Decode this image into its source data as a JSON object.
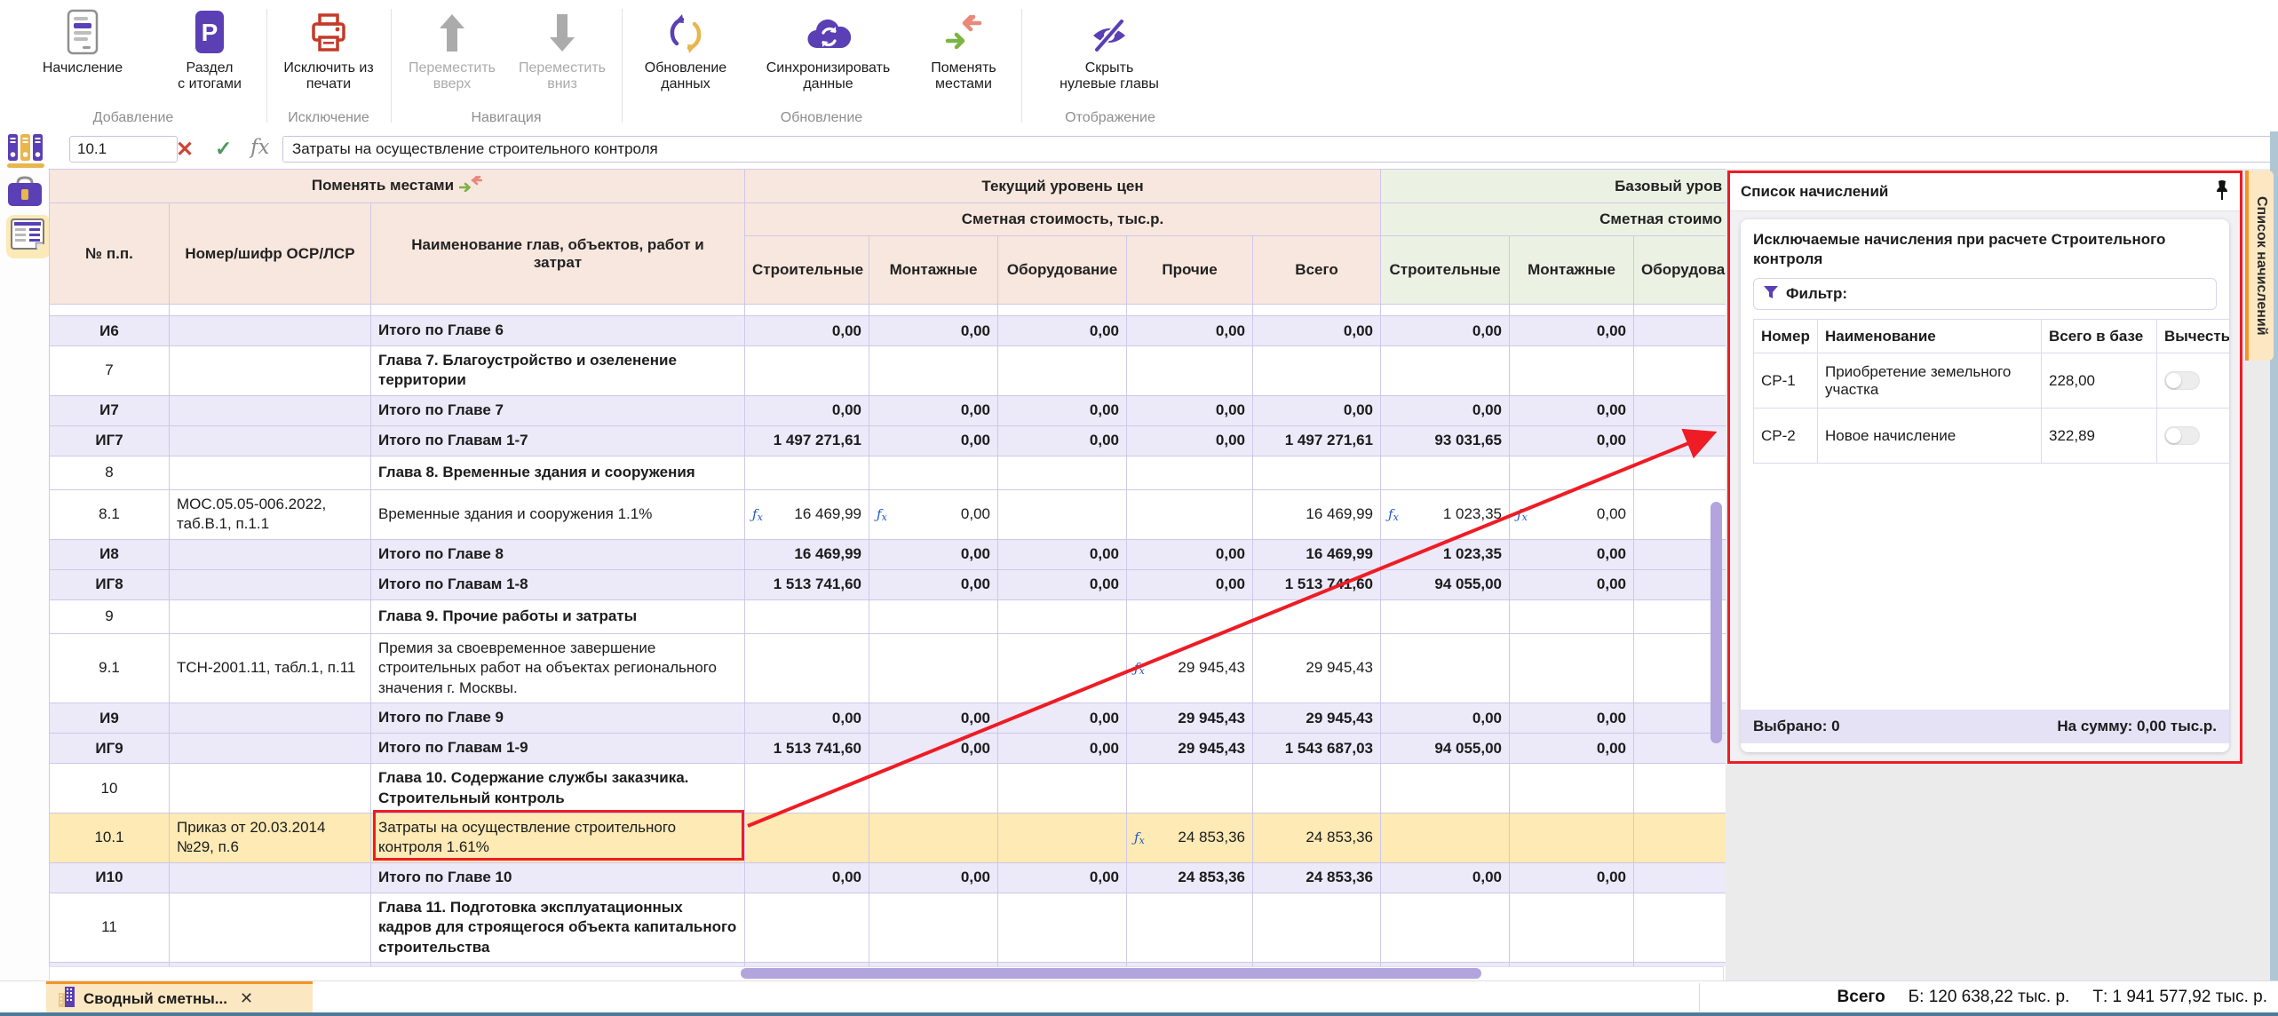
{
  "colors": {
    "accent_purple": "#5a3fb5",
    "accent_orange": "#e8b64c",
    "annotation_red": "#ee1c25",
    "header_pink": "#f8e7de",
    "header_green": "#ebf2e4",
    "total_row": "#ece9f9",
    "highlight_row": "#fdeab5",
    "tab_cream": "#fbe8c2",
    "tab_orange": "#f59425"
  },
  "toolbar": {
    "groups": [
      {
        "label": "Добавление",
        "buttons": [
          {
            "label": "Начисление"
          },
          {
            "label": "Раздел\nс итогами"
          }
        ]
      },
      {
        "label": "Исключение",
        "buttons": [
          {
            "label": "Исключить из\nпечати"
          }
        ]
      },
      {
        "label": "Навигация",
        "buttons": [
          {
            "label": "Переместить\nвверх",
            "disabled": true
          },
          {
            "label": "Переместить\nвниз",
            "disabled": true
          }
        ]
      },
      {
        "label": "Обновление",
        "buttons": [
          {
            "label": "Обновление\nданных"
          },
          {
            "label": "Синхронизировать\nданные"
          },
          {
            "label": "Поменять\nместами"
          }
        ]
      },
      {
        "label": "Отображение",
        "buttons": [
          {
            "label": "Скрыть\nнулевые главы"
          }
        ]
      }
    ]
  },
  "formula_bar": {
    "cell_ref": "10.1",
    "cancel": "✕",
    "apply": "✓",
    "fx": "fx",
    "value": "Затраты на осуществление строительного контроля"
  },
  "grid": {
    "header": {
      "swap": "Поменять местами",
      "num": "№ п.п.",
      "code": "Номер/шифр ОСР/ЛСР",
      "name": "Наименование глав, объектов, работ и затрат",
      "current_group": "Текущий уровень цен",
      "base_group": "Базовый уров",
      "cost": "Сметная стоимость, тыс.р.",
      "cost_base": "Сметная стоимо",
      "money_cols": [
        "Строительные",
        "Монтажные",
        "Оборудование",
        "Прочие",
        "Всего"
      ],
      "base_cols": [
        "Строительные",
        "Монтажные",
        "Оборудова"
      ]
    },
    "rows": [
      {
        "type": "spacer-white"
      },
      {
        "type": "total",
        "id": "И6",
        "code": "",
        "name": "Итого по Главе 6",
        "cur": [
          "0,00",
          "0,00",
          "0,00",
          "0,00",
          "0,00"
        ],
        "base": [
          "0,00",
          "0,00",
          ""
        ]
      },
      {
        "type": "chapter",
        "id": "7",
        "code": "",
        "name": "Глава 7. Благоустройство и озеленение территории",
        "cur": [
          "",
          "",
          "",
          "",
          ""
        ],
        "base": [
          "",
          "",
          ""
        ]
      },
      {
        "type": "total",
        "id": "И7",
        "code": "",
        "name": "Итого по Главе 7",
        "cur": [
          "0,00",
          "0,00",
          "0,00",
          "0,00",
          "0,00"
        ],
        "base": [
          "0,00",
          "0,00",
          ""
        ]
      },
      {
        "type": "total",
        "id": "ИГ7",
        "code": "",
        "name": "Итого по Главам 1-7",
        "cur": [
          "1 497 271,61",
          "0,00",
          "0,00",
          "0,00",
          "1 497 271,61"
        ],
        "base": [
          "93 031,65",
          "0,00",
          ""
        ]
      },
      {
        "type": "chapter",
        "id": "8",
        "code": "",
        "name": "Глава 8. Временные здания и сооружения",
        "cur": [
          "",
          "",
          "",
          "",
          ""
        ],
        "base": [
          "",
          "",
          ""
        ]
      },
      {
        "type": "item",
        "id": "8.1",
        "code": "МОС.05.05-006.2022, таб.В.1, п.1.1",
        "name": "Временные здания и сооружения 1.1%",
        "cur": [
          {
            "v": "16 469,99",
            "fx": true
          },
          {
            "v": "0,00",
            "fx": true
          },
          "",
          "",
          "16 469,99"
        ],
        "base": [
          {
            "v": "1 023,35",
            "fx": true
          },
          {
            "v": "0,00",
            "fx": true
          },
          ""
        ]
      },
      {
        "type": "total",
        "id": "И8",
        "code": "",
        "name": "Итого по Главе 8",
        "cur": [
          "16 469,99",
          "0,00",
          "0,00",
          "0,00",
          "16 469,99"
        ],
        "base": [
          "1 023,35",
          "0,00",
          ""
        ]
      },
      {
        "type": "total",
        "id": "ИГ8",
        "code": "",
        "name": "Итого по Главам 1-8",
        "cur": [
          "1 513 741,60",
          "0,00",
          "0,00",
          "0,00",
          "1 513 741,60"
        ],
        "base": [
          "94 055,00",
          "0,00",
          ""
        ]
      },
      {
        "type": "chapter",
        "id": "9",
        "code": "",
        "name": "Глава 9. Прочие работы и затраты",
        "cur": [
          "",
          "",
          "",
          "",
          ""
        ],
        "base": [
          "",
          "",
          ""
        ]
      },
      {
        "type": "item",
        "id": "9.1",
        "code": "ТСН-2001.11, табл.1, п.11",
        "name": "Премия за своевременное завершение строительных работ на объектах регионального значения г. Москвы.",
        "cur": [
          "",
          "",
          "",
          {
            "v": "29 945,43",
            "fx": true
          },
          "29 945,43"
        ],
        "base": [
          "",
          "",
          ""
        ]
      },
      {
        "type": "total",
        "id": "И9",
        "code": "",
        "name": "Итого по Главе 9",
        "cur": [
          "0,00",
          "0,00",
          "0,00",
          "29 945,43",
          "29 945,43"
        ],
        "base": [
          "0,00",
          "0,00",
          ""
        ]
      },
      {
        "type": "total",
        "id": "ИГ9",
        "code": "",
        "name": "Итого по Главам 1-9",
        "cur": [
          "1 513 741,60",
          "0,00",
          "0,00",
          "29 945,43",
          "1 543 687,03"
        ],
        "base": [
          "94 055,00",
          "0,00",
          ""
        ]
      },
      {
        "type": "chapter",
        "id": "10",
        "code": "",
        "name": "Глава 10. Содержание службы заказчика. Строительный контроль",
        "cur": [
          "",
          "",
          "",
          "",
          ""
        ],
        "base": [
          "",
          "",
          ""
        ]
      },
      {
        "type": "item-highlight",
        "id": "10.1",
        "code": "Приказ от 20.03.2014 №29, п.6",
        "name": "Затраты на осуществление строительного контроля 1.61%",
        "cur": [
          "",
          "",
          "",
          {
            "v": "24 853,36",
            "fx": true
          },
          "24 853,36"
        ],
        "base": [
          "",
          "",
          ""
        ]
      },
      {
        "type": "total",
        "id": "И10",
        "code": "",
        "name": "Итого по Главе 10",
        "cur": [
          "0,00",
          "0,00",
          "0,00",
          "24 853,36",
          "24 853,36"
        ],
        "base": [
          "0,00",
          "0,00",
          ""
        ]
      },
      {
        "type": "chapter",
        "id": "11",
        "code": "",
        "name": "Глава 11. Подготовка эксплуатационных кадров для строящегося объекта капитального строительства",
        "cur": [
          "",
          "",
          "",
          "",
          ""
        ],
        "base": [
          "",
          "",
          ""
        ]
      },
      {
        "type": "spacer-lav"
      }
    ]
  },
  "panel": {
    "title": "Список начислений",
    "subtitle": "Исключаемые начисления при расчете Строительного контроля",
    "filter_label": "Фильтр:",
    "columns": [
      "Номер",
      "Наименование",
      "Всего в базе",
      "Вычесть"
    ],
    "rows": [
      {
        "num": "СР-1",
        "name": "Приобретение земельного участка",
        "total": "228,00",
        "deduct": false
      },
      {
        "num": "СР-2",
        "name": "Новое начисление",
        "total": "322,89",
        "deduct": false
      }
    ],
    "selected_label": "Выбрано: 0",
    "sum_label": "На сумму: 0,00 тыс.р."
  },
  "side_tab": {
    "label": "Список начислений"
  },
  "bottom": {
    "tab_label": "Сводный сметны...",
    "tab_close": "✕",
    "total_label": "Всего",
    "base_total": "Б: 120 638,22 тыс. р.",
    "current_total": "Т: 1 941 577,92 тыс. р."
  }
}
